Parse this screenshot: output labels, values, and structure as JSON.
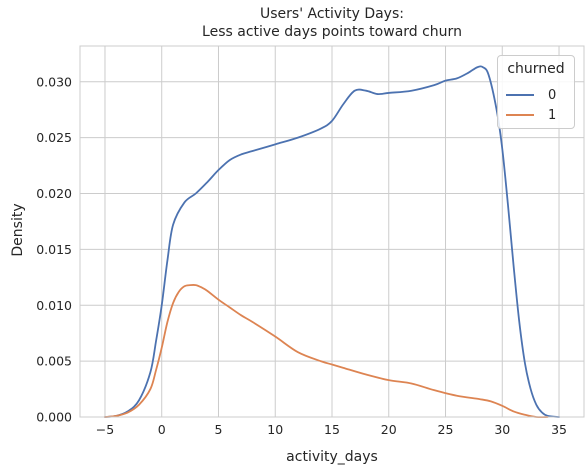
{
  "chart_data": {
    "type": "line",
    "title": "Users' Activity Days:",
    "subtitle": "Less active days points toward churn",
    "xlabel": "activity_days",
    "ylabel": "Density",
    "xlim": [
      -7.2,
      37.2
    ],
    "ylim": [
      0,
      0.0332
    ],
    "xticks": [
      -5,
      0,
      5,
      10,
      15,
      20,
      25,
      30,
      35
    ],
    "yticks": [
      0.0,
      0.005,
      0.01,
      0.015,
      0.02,
      0.025,
      0.03
    ],
    "xtick_labels": [
      "−5",
      "0",
      "5",
      "10",
      "15",
      "20",
      "25",
      "30",
      "35"
    ],
    "ytick_labels": [
      "0.000",
      "0.005",
      "0.010",
      "0.015",
      "0.020",
      "0.025",
      "0.030"
    ],
    "grid": true,
    "legend": {
      "title": "churned",
      "position": "top-right"
    },
    "series": [
      {
        "name": "0",
        "color": "#4c72b0",
        "x": [
          -5,
          -4,
          -3,
          -2,
          -1,
          -0.5,
          0,
          0.5,
          1,
          2,
          3,
          4,
          5,
          6,
          7,
          8,
          10,
          12,
          14,
          15,
          16,
          17,
          18,
          19,
          20,
          22,
          24,
          25,
          26,
          27,
          27.8,
          28.3,
          28.8,
          29.5,
          30,
          30.5,
          31,
          31.5,
          32,
          32.5,
          33,
          33.5,
          34,
          35
        ],
        "y": [
          0.0,
          0.0001,
          0.0005,
          0.0015,
          0.004,
          0.0068,
          0.01,
          0.014,
          0.0172,
          0.0192,
          0.02,
          0.021,
          0.0221,
          0.023,
          0.0235,
          0.0238,
          0.0244,
          0.025,
          0.0258,
          0.0265,
          0.028,
          0.0292,
          0.0292,
          0.0289,
          0.029,
          0.0292,
          0.0297,
          0.0301,
          0.0303,
          0.0308,
          0.0313,
          0.0313,
          0.0306,
          0.0275,
          0.024,
          0.019,
          0.0135,
          0.0085,
          0.0048,
          0.0025,
          0.0011,
          0.0004,
          0.0001,
          0.0
        ]
      },
      {
        "name": "1",
        "color": "#dd8452",
        "x": [
          -5,
          -4,
          -3,
          -2,
          -1,
          -0.5,
          0,
          0.5,
          1,
          1.5,
          2,
          2.5,
          3,
          3.5,
          4,
          5,
          6,
          7,
          8,
          10,
          12,
          14,
          15,
          16,
          18,
          20,
          22,
          24,
          26,
          28,
          29,
          30,
          31,
          32,
          33,
          34
        ],
        "y": [
          0.0,
          0.0001,
          0.0004,
          0.0011,
          0.0025,
          0.0042,
          0.0062,
          0.0085,
          0.0102,
          0.0112,
          0.0117,
          0.0118,
          0.0118,
          0.0116,
          0.0113,
          0.0105,
          0.0098,
          0.0091,
          0.0085,
          0.0072,
          0.0058,
          0.005,
          0.0047,
          0.0044,
          0.0038,
          0.0033,
          0.003,
          0.0024,
          0.0019,
          0.0016,
          0.0014,
          0.001,
          0.0005,
          0.0002,
          0.0,
          0.0
        ]
      }
    ]
  }
}
